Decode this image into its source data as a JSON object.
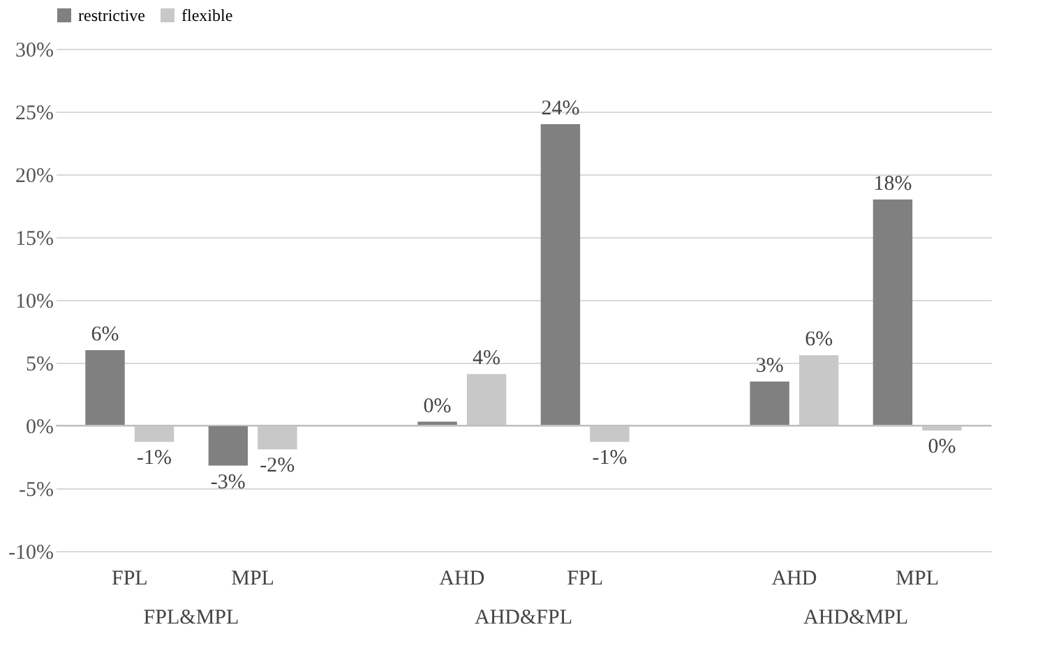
{
  "chart_data": {
    "type": "bar",
    "categories": [
      "FPL",
      "MPL",
      "AHD",
      "FPL",
      "AHD",
      "MPL"
    ],
    "annotations": [
      "FPL&MPL",
      "AHD&FPL",
      "AHD&MPL"
    ],
    "series": [
      {
        "name": "restrictive",
        "color": "#808080",
        "values": [
          6,
          -3.2,
          0.3,
          24,
          3.5,
          18
        ],
        "value_labels": [
          "6%",
          "-3%",
          "0%",
          "24%",
          "3%",
          "18%"
        ]
      },
      {
        "name": "flexible",
        "color": "#c8c8c8",
        "values": [
          -1.3,
          -1.9,
          4.1,
          -1.3,
          5.6,
          -0.4
        ],
        "value_labels": [
          "-1%",
          "-2%",
          "4%",
          "-1%",
          "6%",
          "0%"
        ]
      }
    ],
    "ylim": [
      -10,
      30
    ],
    "yticks": [
      {
        "value": -10,
        "label": "-10%"
      },
      {
        "value": -5,
        "label": "-5%"
      },
      {
        "value": 0,
        "label": "0%"
      },
      {
        "value": 5,
        "label": "5%"
      },
      {
        "value": 10,
        "label": "10%"
      },
      {
        "value": 15,
        "label": "15%"
      },
      {
        "value": 20,
        "label": "20%"
      },
      {
        "value": 25,
        "label": "25%"
      },
      {
        "value": 30,
        "label": "30%"
      }
    ],
    "grid": "y",
    "legend": "top"
  }
}
